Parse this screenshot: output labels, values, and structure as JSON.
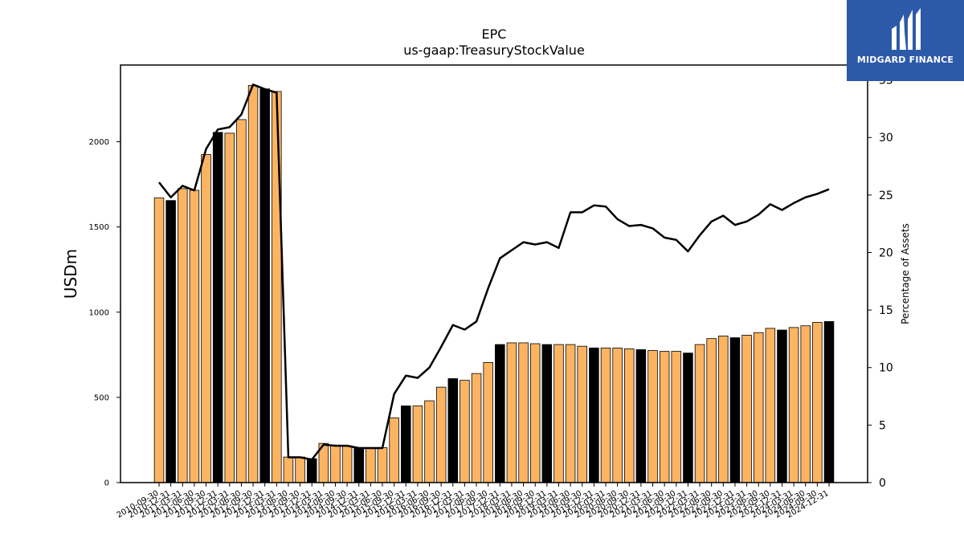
{
  "chart_data": {
    "type": "bar",
    "title": "EPC",
    "subtitle": "us-gaap:TreasuryStockValue",
    "ylabel": "USDm",
    "y2label": "Percentage of Assets",
    "ylim": [
      0,
      2450
    ],
    "y2lim": [
      0,
      36.3
    ],
    "yticks": [
      0,
      500,
      1000,
      1500,
      2000
    ],
    "y2ticks": [
      0,
      5,
      10,
      15,
      20,
      25,
      30,
      35
    ],
    "grid": false,
    "categories": [
      "2010-09-30",
      "2010-12-31",
      "2011-03-31",
      "2011-06-30",
      "2011-09-30",
      "2011-12-31",
      "2012-03-31",
      "2012-06-30",
      "2012-09-30",
      "2012-12-31",
      "2013-03-31",
      "2013-06-30",
      "2013-09-30",
      "2013-12-31",
      "2014-03-31",
      "2014-06-30",
      "2014-09-30",
      "2014-12-31",
      "2015-03-31",
      "2015-06-30",
      "2015-09-30",
      "2015-12-31",
      "2016-03-31",
      "2016-06-30",
      "2016-09-30",
      "2016-12-31",
      "2017-03-31",
      "2017-06-30",
      "2017-09-30",
      "2017-12-31",
      "2018-03-31",
      "2018-06-30",
      "2018-09-30",
      "2018-12-31",
      "2019-03-31",
      "2019-06-30",
      "2019-09-30",
      "2019-12-31",
      "2020-03-31",
      "2020-06-30",
      "2020-09-30",
      "2020-12-31",
      "2021-03-31",
      "2021-06-30",
      "2021-09-30",
      "2021-12-31",
      "2022-03-31",
      "2022-06-30",
      "2022-09-30",
      "2022-12-31",
      "2023-03-31",
      "2023-06-30",
      "2023-09-30",
      "2023-12-31",
      "2024-03-31",
      "2024-06-30",
      "2024-09-30",
      "2024-12-31"
    ],
    "series": [
      {
        "kind": "bar",
        "axis": "left",
        "values": [
          1670,
          1655,
          1725,
          1715,
          1925,
          2055,
          2050,
          2130,
          2330,
          2310,
          2295,
          150,
          150,
          140,
          230,
          220,
          215,
          205,
          205,
          205,
          380,
          450,
          450,
          480,
          560,
          610,
          600,
          640,
          705,
          810,
          820,
          820,
          815,
          810,
          810,
          810,
          800,
          790,
          790,
          790,
          785,
          780,
          775,
          770,
          770,
          760,
          810,
          845,
          860,
          850,
          865,
          880,
          905,
          895,
          910,
          920,
          940,
          945
        ],
        "colors": [
          "#fdb462",
          "#000000",
          "#fdb462",
          "#fdb462",
          "#fdb462",
          "#000000",
          "#fdb462",
          "#fdb462",
          "#fdb462",
          "#000000",
          "#fdb462",
          "#fdb462",
          "#fdb462",
          "#000000",
          "#fdb462",
          "#fdb462",
          "#fdb462",
          "#000000",
          "#fdb462",
          "#fdb462",
          "#fdb462",
          "#000000",
          "#fdb462",
          "#fdb462",
          "#fdb462",
          "#000000",
          "#fdb462",
          "#fdb462",
          "#fdb462",
          "#000000",
          "#fdb462",
          "#fdb462",
          "#fdb462",
          "#000000",
          "#fdb462",
          "#fdb462",
          "#fdb462",
          "#000000",
          "#fdb462",
          "#fdb462",
          "#fdb462",
          "#000000",
          "#fdb462",
          "#fdb462",
          "#fdb462",
          "#000000",
          "#fdb462",
          "#fdb462",
          "#fdb462",
          "#000000",
          "#fdb462",
          "#fdb462",
          "#fdb462",
          "#000000",
          "#fdb462",
          "#fdb462",
          "#fdb462",
          "#000000"
        ]
      },
      {
        "kind": "line",
        "axis": "right",
        "color": "#000000",
        "values": [
          26.1,
          24.8,
          25.8,
          25.4,
          29.0,
          30.7,
          30.9,
          32.0,
          34.6,
          34.2,
          33.9,
          2.2,
          2.2,
          2.0,
          3.3,
          3.2,
          3.2,
          3.0,
          3.0,
          3.0,
          7.7,
          9.3,
          9.1,
          10.0,
          11.8,
          13.7,
          13.3,
          14.0,
          16.9,
          19.5,
          20.2,
          20.9,
          20.7,
          20.9,
          20.4,
          23.5,
          23.5,
          24.1,
          24.0,
          22.9,
          22.3,
          22.4,
          22.1,
          21.3,
          21.1,
          20.1,
          21.5,
          22.7,
          23.2,
          22.4,
          22.7,
          23.3,
          24.2,
          23.7,
          24.3,
          24.8,
          25.1,
          25.5
        ]
      }
    ]
  },
  "logo": {
    "text": "MIDGARD FINANCE",
    "icon": "midgard-m-logo-icon"
  }
}
